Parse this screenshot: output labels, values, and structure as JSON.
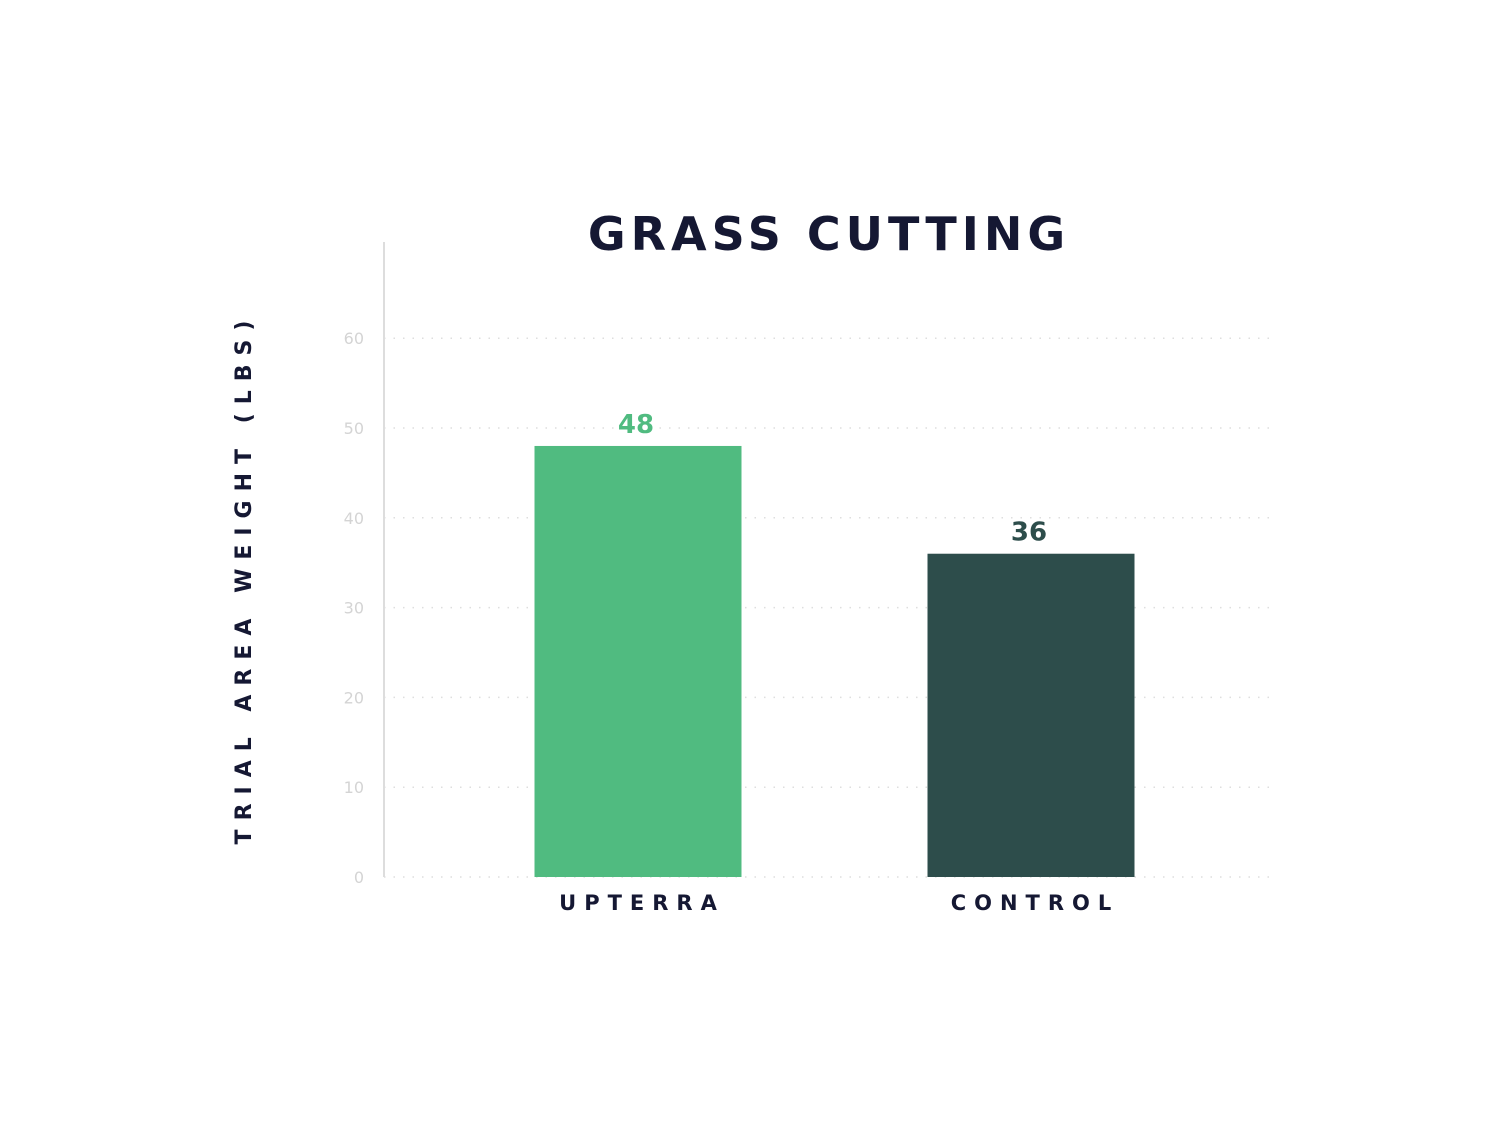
{
  "chart_data": {
    "type": "bar",
    "title": "GRASS CUTTING",
    "xlabel": "",
    "ylabel": "TRIAL AREA WEIGHT (LBS)",
    "categories": [
      "UPTERRA",
      "CONTROL"
    ],
    "values": [
      48,
      36
    ],
    "value_labels": [
      "48",
      "36"
    ],
    "bar_colors": [
      "#50bb80",
      "#2d4d4b"
    ],
    "ylim": [
      0,
      70
    ],
    "yticks": [
      0,
      10,
      20,
      30,
      40,
      50,
      60
    ],
    "ytick_labels": [
      "0",
      "10",
      "20",
      "30",
      "40",
      "50",
      "60"
    ],
    "grid": true,
    "legend": "none",
    "colors": {
      "title": "#151833",
      "tick_label": "#d4d4d4",
      "axis": "#dddddd",
      "grid": "#dedede"
    }
  }
}
